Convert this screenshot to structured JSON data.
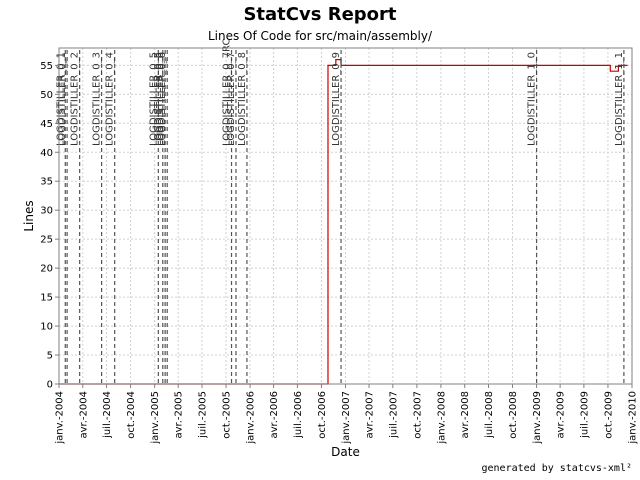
{
  "chart_data": {
    "type": "line",
    "title": "StatCvs Report",
    "subtitle": "Lines Of Code for src/main/assembly/",
    "xlabel": "Date",
    "ylabel": "Lines",
    "ylim": [
      0,
      58
    ],
    "yticks": [
      0,
      5,
      10,
      15,
      20,
      25,
      30,
      35,
      40,
      45,
      50,
      55
    ],
    "xlim": [
      "2004-01-01",
      "2010-01-01"
    ],
    "xticks": [
      {
        "date": "2004-01-01",
        "label": "janv.-2004"
      },
      {
        "date": "2004-04-01",
        "label": "avr.-2004"
      },
      {
        "date": "2004-07-01",
        "label": "juil.-2004"
      },
      {
        "date": "2004-10-01",
        "label": "oct.-2004"
      },
      {
        "date": "2005-01-01",
        "label": "janv.-2005"
      },
      {
        "date": "2005-04-01",
        "label": "avr.-2005"
      },
      {
        "date": "2005-07-01",
        "label": "juil.-2005"
      },
      {
        "date": "2005-10-01",
        "label": "oct.-2005"
      },
      {
        "date": "2006-01-01",
        "label": "janv.-2006"
      },
      {
        "date": "2006-04-01",
        "label": "avr.-2006"
      },
      {
        "date": "2006-07-01",
        "label": "juil.-2006"
      },
      {
        "date": "2006-10-01",
        "label": "oct.-2006"
      },
      {
        "date": "2007-01-01",
        "label": "janv.-2007"
      },
      {
        "date": "2007-04-01",
        "label": "avr.-2007"
      },
      {
        "date": "2007-07-01",
        "label": "juil.-2007"
      },
      {
        "date": "2007-10-01",
        "label": "oct.-2007"
      },
      {
        "date": "2008-01-01",
        "label": "janv.-2008"
      },
      {
        "date": "2008-04-01",
        "label": "avr.-2008"
      },
      {
        "date": "2008-07-01",
        "label": "juil.-2008"
      },
      {
        "date": "2008-10-01",
        "label": "oct.-2008"
      },
      {
        "date": "2009-01-01",
        "label": "janv.-2009"
      },
      {
        "date": "2009-04-01",
        "label": "avr.-2009"
      },
      {
        "date": "2009-07-01",
        "label": "juil.-2009"
      },
      {
        "date": "2009-10-01",
        "label": "oct.-2009"
      },
      {
        "date": "2010-01-01",
        "label": "janv.-2010"
      }
    ],
    "grid": true,
    "series": [
      {
        "name": "",
        "color": "#cc0000",
        "step": true,
        "points": [
          {
            "x": "2004-01-01",
            "y": 0
          },
          {
            "x": "2006-10-26",
            "y": 0
          },
          {
            "x": "2006-10-26",
            "y": 55
          },
          {
            "x": "2006-11-25",
            "y": 55
          },
          {
            "x": "2006-11-25",
            "y": 56
          },
          {
            "x": "2006-12-15",
            "y": 56
          },
          {
            "x": "2006-12-15",
            "y": 55
          },
          {
            "x": "2009-10-10",
            "y": 55
          },
          {
            "x": "2009-10-10",
            "y": 54
          },
          {
            "x": "2009-11-10",
            "y": 54
          },
          {
            "x": "2009-11-10",
            "y": 55
          },
          {
            "x": "2009-12-15",
            "y": 55
          }
        ]
      }
    ],
    "releases": [
      {
        "label": "LOGDISTILLER_0_1",
        "x": "2004-01-25"
      },
      {
        "label": "LOGDISTILLER_0_1",
        "x": "2004-02-01"
      },
      {
        "label": "LOGDISTILLER_0_2",
        "x": "2004-03-20"
      },
      {
        "label": "LOGDISTILLER_0_3",
        "x": "2004-06-12"
      },
      {
        "label": "LOGDISTILLER_0_4",
        "x": "2004-08-01"
      },
      {
        "label": "LOGDISTILLER_0_5",
        "x": "2005-01-15"
      },
      {
        "label": "LOGDISTILLER_0_5",
        "x": "2005-02-01"
      },
      {
        "label": "LOGDISTILLER_0_6",
        "x": "2005-02-10"
      },
      {
        "label": "LOGDISTILLER_0_6",
        "x": "2005-02-18"
      },
      {
        "label": "LOGDISTILLER_0_7RC",
        "x": "2005-10-22"
      },
      {
        "label": "LOGDISTILLER_0_7",
        "x": "2005-11-08"
      },
      {
        "label": "LOGDISTILLER_0_8",
        "x": "2005-12-20"
      },
      {
        "label": "LOGDISTILLER_0_9",
        "x": "2006-12-15"
      },
      {
        "label": "LOGDISTILLER_1_0",
        "x": "2009-01-01"
      },
      {
        "label": "LOGDISTILLER_1_1",
        "x": "2009-12-01"
      }
    ]
  },
  "footer": "generated by statcvs-xml²"
}
